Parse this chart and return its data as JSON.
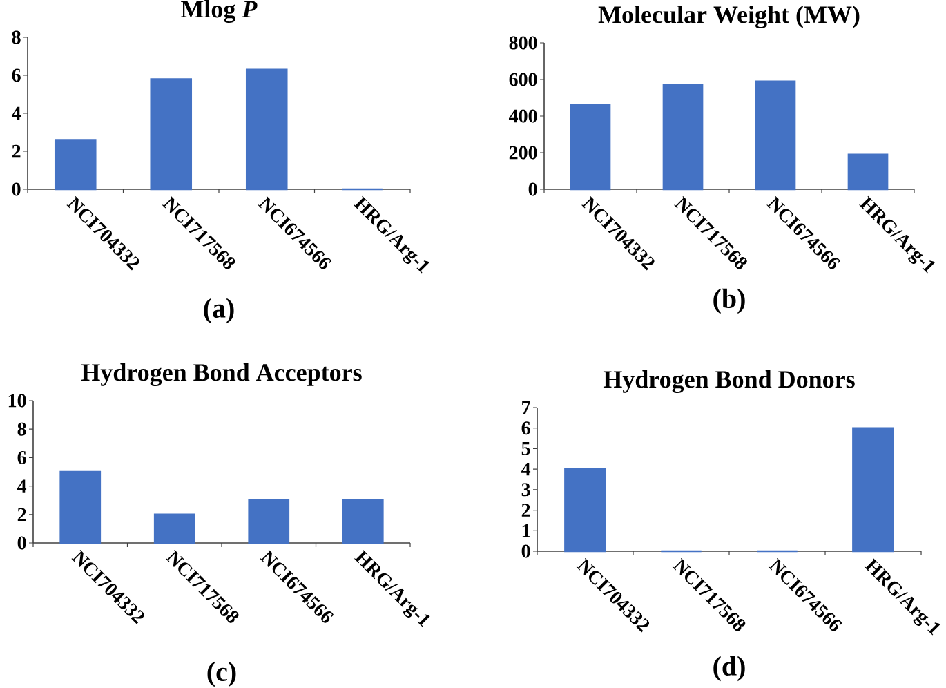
{
  "chart_data": [
    {
      "type": "bar",
      "title": "Mlog *P*",
      "categories": [
        "NCI704332",
        "NCI717568",
        "NCI674566",
        "HRG/Arg-1"
      ],
      "values": [
        2.6,
        5.8,
        6.3,
        0
      ],
      "color": "#4472c4",
      "ylim": [
        0,
        8
      ],
      "yticks": [
        0,
        2,
        4,
        6,
        8
      ],
      "annotations": [
        "(a)"
      ]
    },
    {
      "type": "bar",
      "title": "Molecular Weight (MW)",
      "categories": [
        "NCI704332",
        "NCI717568",
        "NCI674566",
        "HRG/Arg-1"
      ],
      "values": [
        460,
        570,
        590,
        190
      ],
      "color": "#4472c4",
      "ylim": [
        0,
        800
      ],
      "yticks": [
        0,
        200,
        400,
        600,
        800
      ],
      "annotations": [
        "(b)"
      ]
    },
    {
      "type": "bar",
      "title": "Hydrogen Bond Acceptors",
      "categories": [
        "NCI704332",
        "NCI717568",
        "NCI674566",
        "HRG/Arg-1"
      ],
      "values": [
        5,
        2,
        3,
        3
      ],
      "color": "#4472c4",
      "ylim": [
        0,
        10
      ],
      "yticks": [
        0,
        2,
        4,
        6,
        8,
        10
      ],
      "annotations": [
        "(c)"
      ]
    },
    {
      "type": "bar",
      "title": "Hydrogen Bond Donors",
      "categories": [
        "NCI704332",
        "NCI717568",
        "NCI674566",
        "HRG/Arg-1"
      ],
      "values": [
        4,
        0,
        0,
        6
      ],
      "color": "#4472c4",
      "ylim": [
        0,
        7
      ],
      "yticks": [
        0,
        1,
        2,
        3,
        4,
        5,
        6,
        7
      ],
      "annotations": [
        "(d)"
      ]
    }
  ]
}
